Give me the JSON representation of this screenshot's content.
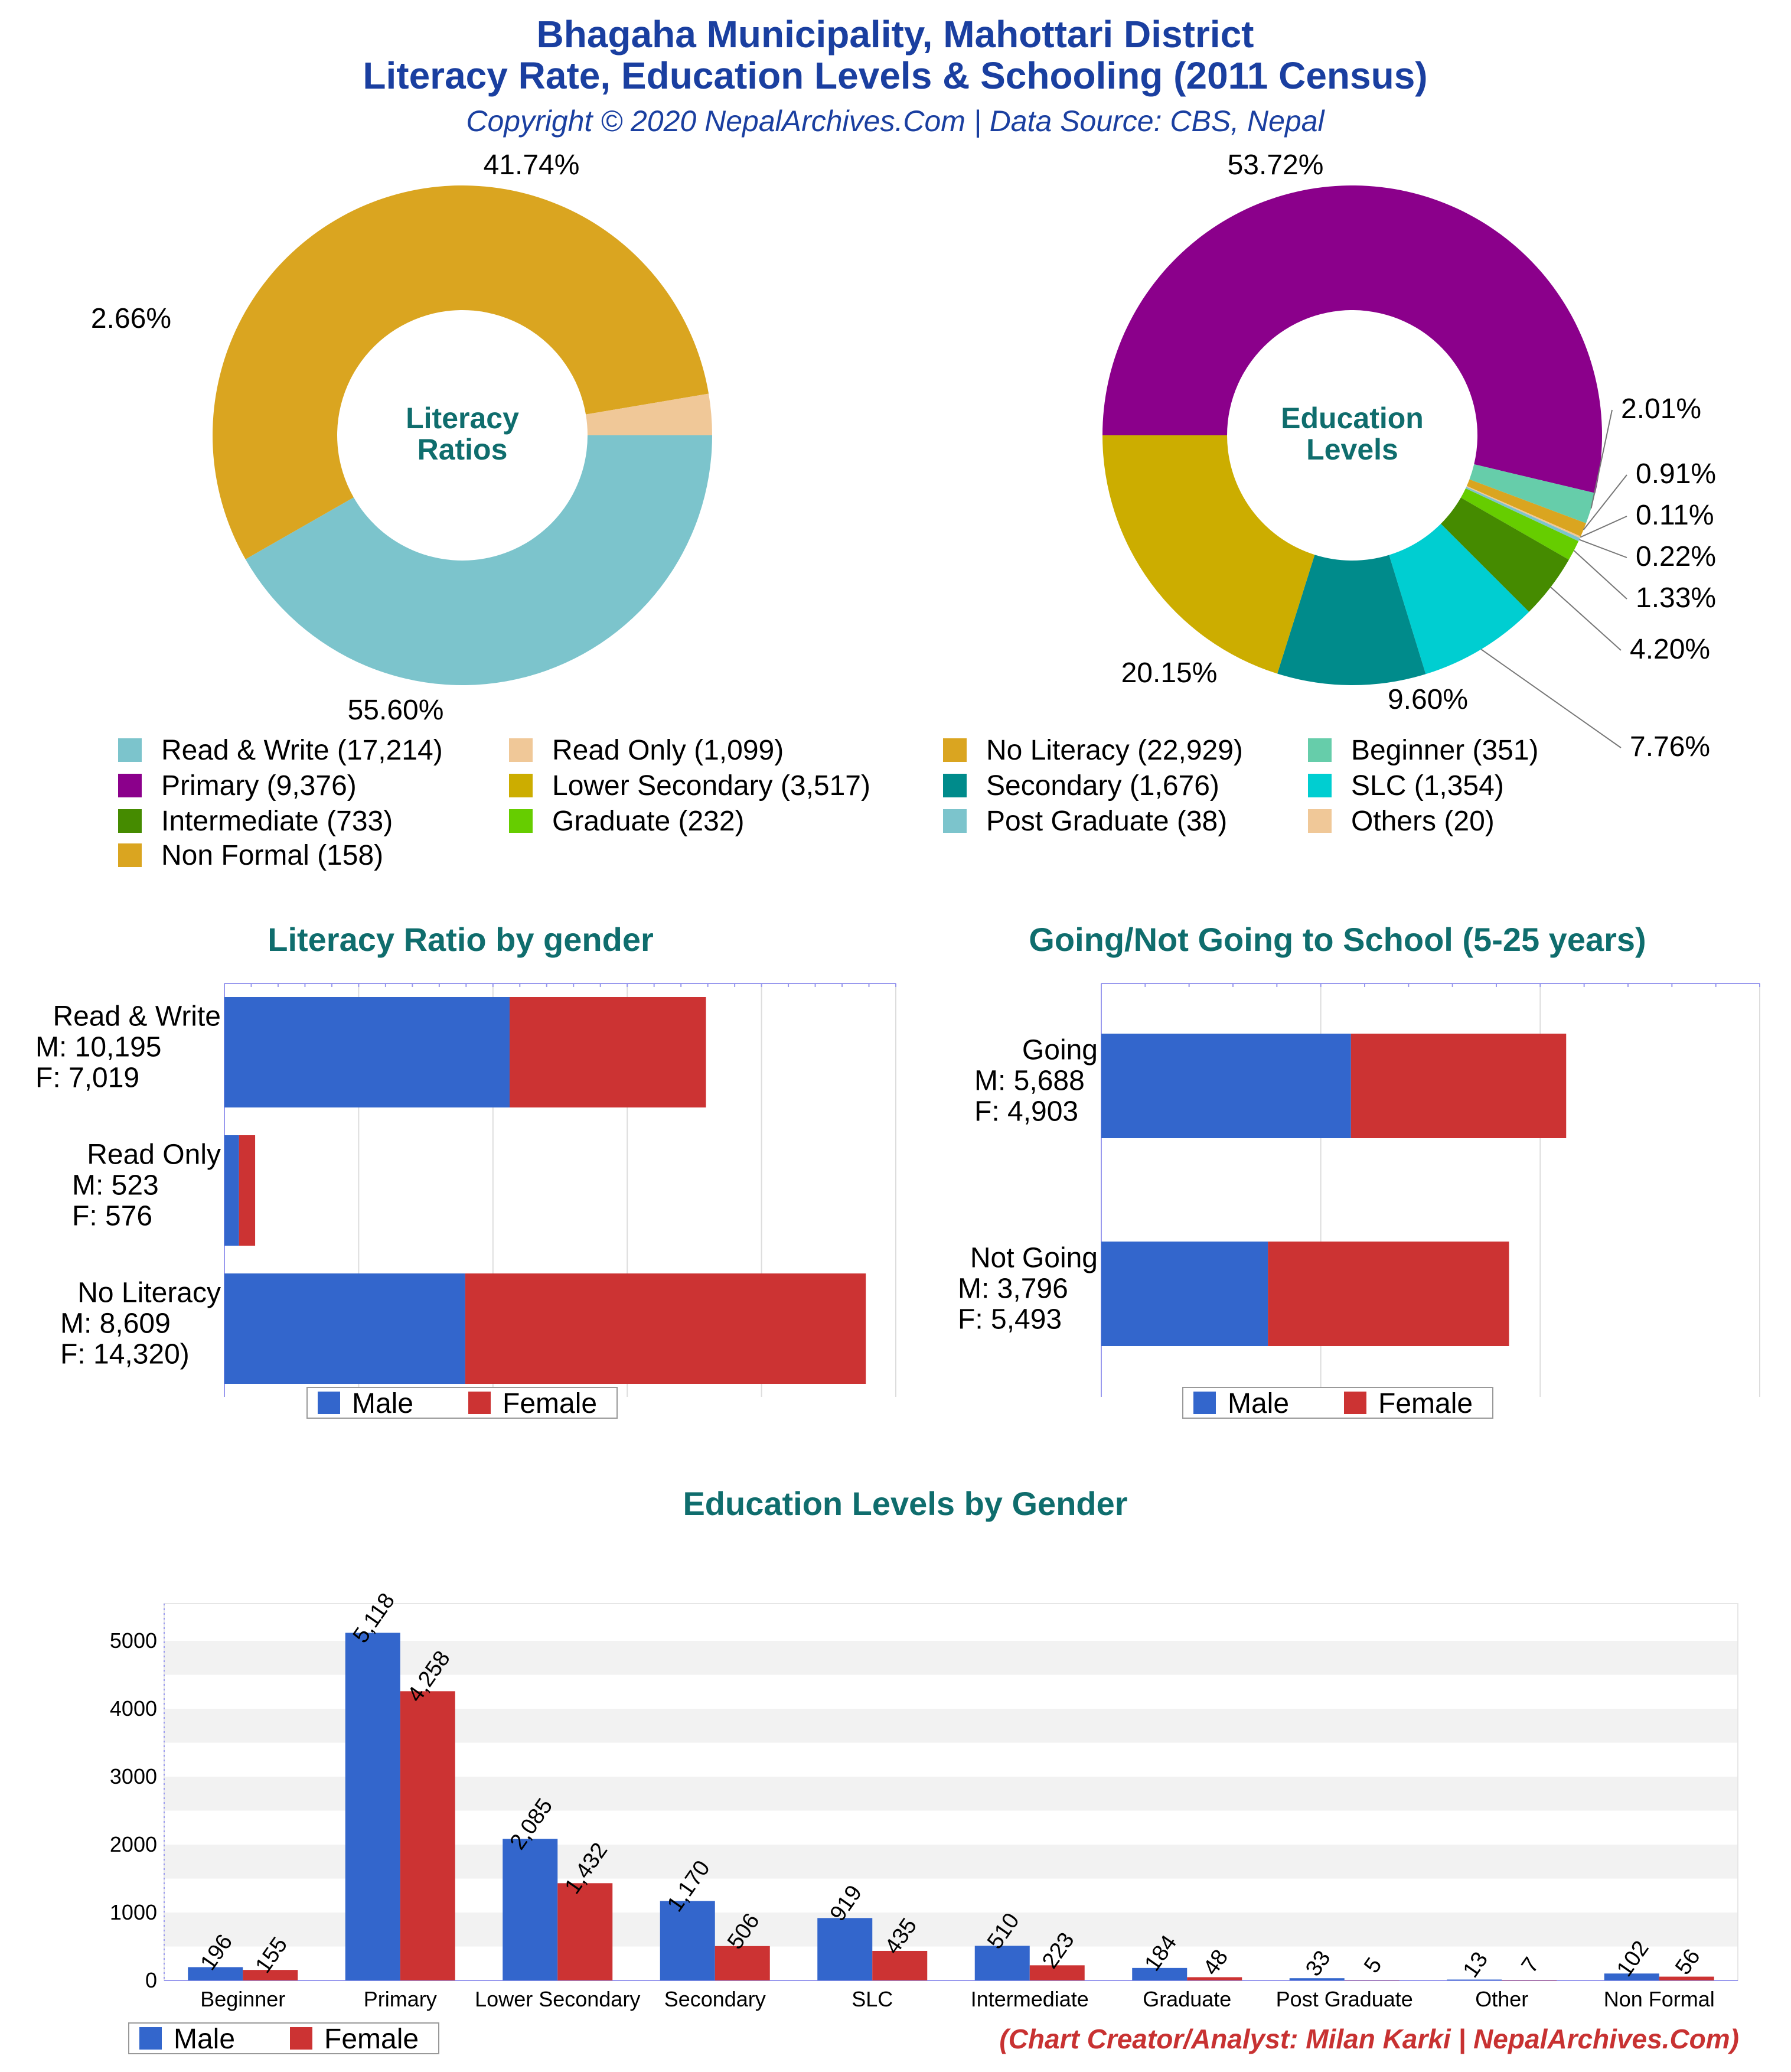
{
  "header": {
    "title_line1": "Bhagaha Municipality, Mahottari District",
    "title_line2": "Literacy Rate, Education Levels & Schooling (2011 Census)",
    "copyright": "Copyright © 2020 NepalArchives.Com | Data Source: CBS, Nepal"
  },
  "colors": {
    "read_write": "#7cc4cc",
    "read_only": "#f0c898",
    "no_literacy": "#daa520",
    "beginner": "#66cdaa",
    "primary": "#8b008b",
    "lower_secondary": "#ccad00",
    "secondary": "#008b8b",
    "slc": "#00ced1",
    "intermediate": "#458b00",
    "graduate": "#66cd00",
    "post_graduate": "#7cc4cc",
    "others": "#f0c898",
    "non_formal": "#daa520",
    "male": "#3366cc",
    "female": "#cc3333"
  },
  "legend": {
    "items": [
      {
        "label": "Read & Write (17,214)",
        "color": "#7cc4cc"
      },
      {
        "label": "Read Only (1,099)",
        "color": "#f0c898"
      },
      {
        "label": "No Literacy (22,929)",
        "color": "#daa520"
      },
      {
        "label": "Beginner (351)",
        "color": "#66cdaa"
      },
      {
        "label": "Primary (9,376)",
        "color": "#8b008b"
      },
      {
        "label": "Lower Secondary (3,517)",
        "color": "#ccad00"
      },
      {
        "label": "Secondary (1,676)",
        "color": "#008b8b"
      },
      {
        "label": "SLC (1,354)",
        "color": "#00ced1"
      },
      {
        "label": "Intermediate (733)",
        "color": "#458b00"
      },
      {
        "label": "Graduate (232)",
        "color": "#66cd00"
      },
      {
        "label": "Post Graduate (38)",
        "color": "#7cc4cc"
      },
      {
        "label": "Others (20)",
        "color": "#f0c898"
      },
      {
        "label": "Non Formal (158)",
        "color": "#daa520"
      }
    ]
  },
  "gender_legend": {
    "male": "Male",
    "female": "Female"
  },
  "credit": "(Chart Creator/Analyst: Milan Karki | NepalArchives.Com)",
  "chart_data": [
    {
      "type": "pie",
      "title": "Literacy Ratios",
      "slices": [
        {
          "name": "Read & Write",
          "value": 17214,
          "pct_label": "41.74%",
          "color": "#7cc4cc"
        },
        {
          "name": "No Literacy",
          "value": 22929,
          "pct_label": "55.60%",
          "color": "#daa520"
        },
        {
          "name": "Read Only",
          "value": 1099,
          "pct_label": "2.66%",
          "color": "#f0c898"
        }
      ]
    },
    {
      "type": "pie",
      "title": "Education Levels",
      "slices": [
        {
          "name": "Primary",
          "value": 9376,
          "pct_label": "53.72%",
          "color": "#8b008b"
        },
        {
          "name": "Beginner",
          "value": 351,
          "pct_label": "2.01%",
          "color": "#66cdaa"
        },
        {
          "name": "Non Formal",
          "value": 158,
          "pct_label": "0.91%",
          "color": "#daa520"
        },
        {
          "name": "Others",
          "value": 20,
          "pct_label": "0.11%",
          "color": "#f0c898"
        },
        {
          "name": "Post Graduate",
          "value": 38,
          "pct_label": "0.22%",
          "color": "#7cc4cc"
        },
        {
          "name": "Graduate",
          "value": 232,
          "pct_label": "1.33%",
          "color": "#66cd00"
        },
        {
          "name": "Intermediate",
          "value": 733,
          "pct_label": "4.20%",
          "color": "#458b00"
        },
        {
          "name": "SLC",
          "value": 1354,
          "pct_label": "7.76%",
          "color": "#00ced1"
        },
        {
          "name": "Secondary",
          "value": 1676,
          "pct_label": "9.60%",
          "color": "#008b8b"
        },
        {
          "name": "Lower Secondary",
          "value": 3517,
          "pct_label": "20.15%",
          "color": "#ccad00"
        }
      ]
    },
    {
      "type": "bar",
      "title": "Literacy Ratio by gender",
      "stacked": true,
      "orientation": "horizontal",
      "xlim": [
        0,
        24000
      ],
      "categories": [
        {
          "line1": "Read & Write",
          "line2": "M: 10,195",
          "line3": "F: 7,019"
        },
        {
          "line1": "Read Only",
          "line2": "M: 523",
          "line3": "F: 576"
        },
        {
          "line1": "No Literacy",
          "line2": "M: 8,609",
          "line3": "F: 14,320)"
        }
      ],
      "series": [
        {
          "name": "Male",
          "values": [
            10195,
            523,
            8609
          ]
        },
        {
          "name": "Female",
          "values": [
            7019,
            576,
            14320
          ]
        }
      ]
    },
    {
      "type": "bar",
      "title": "Going/Not Going to School (5-25 years)",
      "stacked": true,
      "orientation": "horizontal",
      "xlim": [
        0,
        15000
      ],
      "categories": [
        {
          "line1": "Going",
          "line2": "M: 5,688",
          "line3": "F: 4,903"
        },
        {
          "line1": "Not Going",
          "line2": "M: 3,796",
          "line3": "F: 5,493"
        }
      ],
      "series": [
        {
          "name": "Male",
          "values": [
            5688,
            3796
          ]
        },
        {
          "name": "Female",
          "values": [
            4903,
            5493
          ]
        }
      ]
    },
    {
      "type": "bar",
      "title": "Education Levels by Gender",
      "ylim": [
        0,
        5400
      ],
      "yticks": [
        0,
        1000,
        2000,
        3000,
        4000,
        5000
      ],
      "categories": [
        "Beginner",
        "Primary",
        "Lower Secondary",
        "Secondary",
        "SLC",
        "Intermediate",
        "Graduate",
        "Post Graduate",
        "Other",
        "Non Formal"
      ],
      "series": [
        {
          "name": "Male",
          "values": [
            196,
            5118,
            2085,
            1170,
            919,
            510,
            184,
            33,
            13,
            102
          ],
          "labels": [
            "196",
            "5,118",
            "2,085",
            "1,170",
            "919",
            "510",
            "184",
            "33",
            "13",
            "102"
          ]
        },
        {
          "name": "Female",
          "values": [
            155,
            4258,
            1432,
            506,
            435,
            223,
            48,
            5,
            7,
            56
          ],
          "labels": [
            "155",
            "4,258",
            "1,432",
            "506",
            "435",
            "223",
            "48",
            "5",
            "7",
            "56"
          ]
        }
      ]
    }
  ]
}
